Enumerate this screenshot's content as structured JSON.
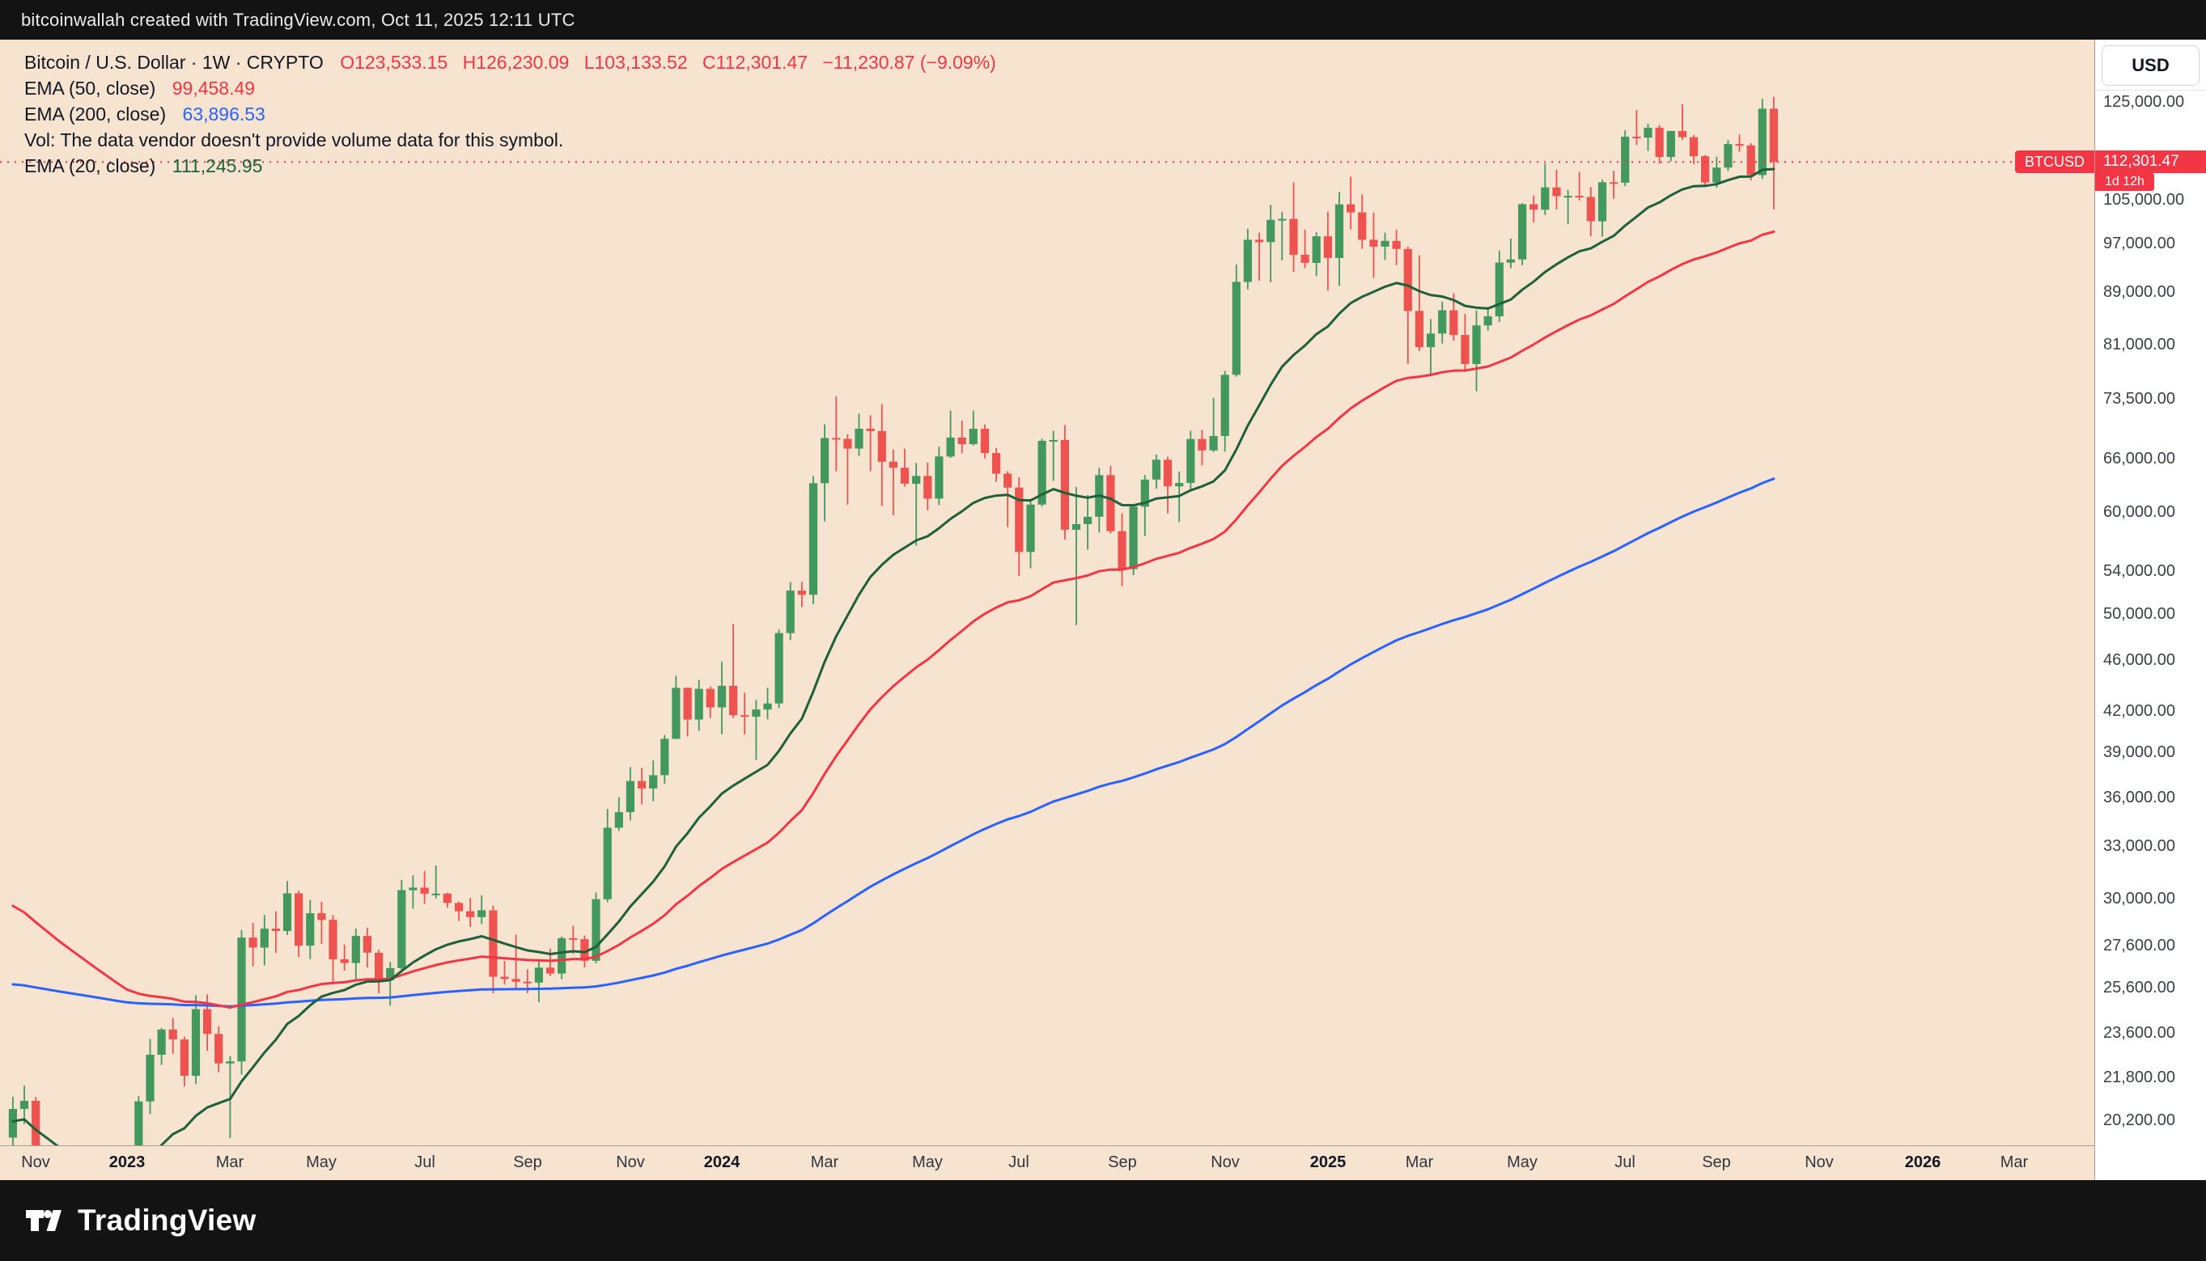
{
  "top_bar": {
    "attribution": "bitcoinwallah created with TradingView.com, Oct 11, 2025 12:11 UTC"
  },
  "legend": {
    "symbol": "Bitcoin / U.S. Dollar · 1W · CRYPTO",
    "ohlc": {
      "open": "O123,533.15",
      "high": "H126,230.09",
      "low": "L103,133.52",
      "close": "C112,301.47",
      "change": "−11,230.87 (−9.09%)"
    },
    "ema50": {
      "label": "EMA (50, close)",
      "value": "99,458.49"
    },
    "ema200": {
      "label": "EMA (200, close)",
      "value": "63,896.53"
    },
    "vol_note": "Vol: The data vendor doesn't provide volume data for this symbol.",
    "ema20": {
      "label": "EMA (20, close)",
      "value": "111,245.95"
    }
  },
  "price_axis": {
    "currency_button": "USD",
    "price_badge": "112,301.47",
    "countdown_badge": "1d 12h",
    "symbol_badge": "BTCUSD"
  },
  "footer": {
    "brand": "TradingView"
  },
  "chart_data": {
    "type": "candlestick",
    "title": "Bitcoin / U.S. Dollar, 1W, CRYPTO",
    "symbol": "BTCUSD",
    "interval": "1W",
    "scale": "log",
    "legend_position": "top-left",
    "grid": false,
    "view": {
      "price_top": 139800,
      "price_bottom": 19300,
      "total_weeks": 183
    },
    "last": {
      "open": 123533.15,
      "high": 126230.09,
      "low": 103133.52,
      "close": 112301.47,
      "change": "−11,230.87",
      "change_pct": "−9.09%"
    },
    "y_axis": {
      "side": "right",
      "ticks": [
        {
          "label": "125,000.00",
          "value": 125000
        },
        {
          "label": "105,000.00",
          "value": 105000
        },
        {
          "label": "97,000.00",
          "value": 97000
        },
        {
          "label": "89,000.00",
          "value": 89000
        },
        {
          "label": "81,000.00",
          "value": 81000
        },
        {
          "label": "73,500.00",
          "value": 73500
        },
        {
          "label": "66,000.00",
          "value": 66000
        },
        {
          "label": "60,000.00",
          "value": 60000
        },
        {
          "label": "54,000.00",
          "value": 54000
        },
        {
          "label": "50,000.00",
          "value": 50000
        },
        {
          "label": "46,000.00",
          "value": 46000
        },
        {
          "label": "42,000.00",
          "value": 42000
        },
        {
          "label": "39,000.00",
          "value": 39000
        },
        {
          "label": "36,000.00",
          "value": 36000
        },
        {
          "label": "33,000.00",
          "value": 33000
        },
        {
          "label": "30,000.00",
          "value": 30000
        },
        {
          "label": "27,600.00",
          "value": 27600
        },
        {
          "label": "25,600.00",
          "value": 25600
        },
        {
          "label": "23,600.00",
          "value": 23600
        },
        {
          "label": "21,800.00",
          "value": 21800
        },
        {
          "label": "20,200.00",
          "value": 20200
        }
      ]
    },
    "x_axis": {
      "ticks": [
        {
          "label": "Nov",
          "index": 2
        },
        {
          "label": "2023",
          "index": 10,
          "bold": true
        },
        {
          "label": "Mar",
          "index": 19
        },
        {
          "label": "May",
          "index": 27
        },
        {
          "label": "Jul",
          "index": 36
        },
        {
          "label": "Sep",
          "index": 45
        },
        {
          "label": "Nov",
          "index": 54
        },
        {
          "label": "2024",
          "index": 62,
          "bold": true
        },
        {
          "label": "Mar",
          "index": 71
        },
        {
          "label": "May",
          "index": 80
        },
        {
          "label": "Jul",
          "index": 88
        },
        {
          "label": "Sep",
          "index": 97
        },
        {
          "label": "Nov",
          "index": 106
        },
        {
          "label": "2025",
          "index": 115,
          "bold": true
        },
        {
          "label": "Mar",
          "index": 123
        },
        {
          "label": "May",
          "index": 132
        },
        {
          "label": "Jul",
          "index": 141
        },
        {
          "label": "Sep",
          "index": 149
        },
        {
          "label": "Nov",
          "index": 158
        },
        {
          "label": "2026",
          "index": 167,
          "bold": true
        },
        {
          "label": "Mar",
          "index": 175
        }
      ]
    },
    "indicators": [
      {
        "name": "EMA (20, close)",
        "period": 20,
        "seed": 20100,
        "color": "#1d603a",
        "last_value": 111245.95
      },
      {
        "name": "EMA (50, close)",
        "period": 50,
        "seed": 30000,
        "color": "#f23645",
        "last_value": 99458.49
      },
      {
        "name": "EMA (200, close)",
        "period": 200,
        "seed": 25800,
        "color": "#2962ff",
        "last_value": 63896.53
      }
    ],
    "colors": {
      "up": "#43995d",
      "down": "#ef5350",
      "background": "#f6e3d0",
      "price_line": "#f23645"
    },
    "candles": [
      [
        19570,
        21050,
        19150,
        20600
      ],
      [
        20600,
        21480,
        20050,
        20900
      ],
      [
        20900,
        21050,
        15480,
        16300
      ],
      [
        16300,
        17150,
        15750,
        16700
      ],
      [
        16700,
        16770,
        15500,
        16450
      ],
      [
        16450,
        17400,
        16000,
        17100
      ],
      [
        17100,
        17360,
        16750,
        17150
      ],
      [
        17150,
        18390,
        16530,
        16750
      ],
      [
        16750,
        16960,
        16350,
        16850
      ],
      [
        16850,
        16980,
        16330,
        16550
      ],
      [
        16550,
        17050,
        16490,
        16950
      ],
      [
        16950,
        21080,
        16910,
        20880
      ],
      [
        20880,
        23350,
        20410,
        22700
      ],
      [
        22700,
        23810,
        22290,
        23750
      ],
      [
        23750,
        24250,
        22740,
        23330
      ],
      [
        23330,
        23450,
        21440,
        21860
      ],
      [
        21860,
        25250,
        21540,
        24630
      ],
      [
        24630,
        25290,
        22860,
        23560
      ],
      [
        23560,
        23890,
        21990,
        22350
      ],
      [
        22350,
        22650,
        19550,
        22430
      ],
      [
        22430,
        28390,
        21910,
        28000
      ],
      [
        28000,
        28750,
        26590,
        27500
      ],
      [
        27500,
        29150,
        26640,
        28450
      ],
      [
        28450,
        29350,
        27240,
        28330
      ],
      [
        28330,
        30980,
        28140,
        30310
      ],
      [
        30310,
        30450,
        27040,
        27600
      ],
      [
        27600,
        29950,
        26940,
        29250
      ],
      [
        29250,
        29850,
        27690,
        28900
      ],
      [
        28900,
        29150,
        25840,
        26930
      ],
      [
        26930,
        27650,
        26390,
        26750
      ],
      [
        26750,
        28450,
        25890,
        28080
      ],
      [
        28080,
        28500,
        26540,
        27250
      ],
      [
        27250,
        27400,
        25340,
        25940
      ],
      [
        25940,
        26800,
        24790,
        26510
      ],
      [
        26510,
        31050,
        26290,
        30480
      ],
      [
        30480,
        31300,
        29490,
        30620
      ],
      [
        30620,
        31550,
        29740,
        30290
      ],
      [
        30290,
        31850,
        30040,
        30290
      ],
      [
        30290,
        30350,
        29540,
        29790
      ],
      [
        29790,
        29860,
        28840,
        29350
      ],
      [
        29350,
        30050,
        28540,
        29045
      ],
      [
        29045,
        30200,
        28690,
        29400
      ],
      [
        29400,
        29650,
        25340,
        26100
      ],
      [
        26100,
        26850,
        25740,
        26000
      ],
      [
        26000,
        28150,
        25540,
        25870
      ],
      [
        25870,
        26450,
        25340,
        25830
      ],
      [
        25830,
        26900,
        24940,
        26530
      ],
      [
        26530,
        27450,
        26140,
        26250
      ],
      [
        26250,
        28050,
        25990,
        27970
      ],
      [
        27970,
        28600,
        27190,
        27920
      ],
      [
        27920,
        28100,
        26540,
        26860
      ],
      [
        26860,
        30350,
        26740,
        29990
      ],
      [
        29990,
        35250,
        29840,
        34090
      ],
      [
        34090,
        36000,
        33890,
        35050
      ],
      [
        35050,
        38000,
        34540,
        37060
      ],
      [
        37060,
        37950,
        35540,
        36570
      ],
      [
        36570,
        38450,
        35740,
        37450
      ],
      [
        37450,
        40250,
        36890,
        39970
      ],
      [
        39970,
        44750,
        39940,
        43790
      ],
      [
        43790,
        43800,
        40140,
        41370
      ],
      [
        41370,
        44400,
        40540,
        43710
      ],
      [
        43710,
        43900,
        41490,
        42280
      ],
      [
        42280,
        45900,
        40290,
        43950
      ],
      [
        43950,
        49100,
        41490,
        41700
      ],
      [
        41700,
        43400,
        40270,
        41580
      ],
      [
        41580,
        42850,
        38490,
        42120
      ],
      [
        42120,
        43800,
        41390,
        42580
      ],
      [
        42580,
        48600,
        42240,
        48300
      ],
      [
        48300,
        52900,
        47690,
        52120
      ],
      [
        52120,
        52950,
        50590,
        51730
      ],
      [
        51730,
        64000,
        50890,
        63170
      ],
      [
        63170,
        70200,
        59000,
        68500
      ],
      [
        68500,
        73800,
        64540,
        68390
      ],
      [
        68390,
        68950,
        60790,
        67210
      ],
      [
        67210,
        71550,
        66340,
        69650
      ],
      [
        69650,
        71350,
        64540,
        69360
      ],
      [
        69360,
        72800,
        60660,
        65650
      ],
      [
        65650,
        67100,
        59640,
        64940
      ],
      [
        64940,
        67200,
        62790,
        63110
      ],
      [
        63110,
        65500,
        56490,
        64000
      ],
      [
        64000,
        65550,
        60190,
        61450
      ],
      [
        61450,
        67450,
        60740,
        66270
      ],
      [
        66270,
        71950,
        66090,
        68550
      ],
      [
        68550,
        70650,
        66640,
        67750
      ],
      [
        67750,
        71950,
        67590,
        69640
      ],
      [
        69640,
        70200,
        66040,
        66680
      ],
      [
        66680,
        67300,
        63340,
        64260
      ],
      [
        64260,
        64550,
        58390,
        62680
      ],
      [
        62680,
        63850,
        53490,
        55850
      ],
      [
        55850,
        61450,
        54240,
        60800
      ],
      [
        60800,
        68400,
        60590,
        68150
      ],
      [
        68150,
        69400,
        63440,
        68250
      ],
      [
        68250,
        70100,
        57090,
        58120
      ],
      [
        58120,
        62750,
        48990,
        58710
      ],
      [
        58710,
        61850,
        56090,
        59480
      ],
      [
        59480,
        64950,
        57840,
        64090
      ],
      [
        64090,
        65200,
        57740,
        57970
      ],
      [
        57970,
        59850,
        52540,
        54160
      ],
      [
        54160,
        60650,
        53590,
        60570
      ],
      [
        60570,
        64100,
        57490,
        63580
      ],
      [
        63580,
        66500,
        62540,
        65880
      ],
      [
        65880,
        66250,
        59840,
        62820
      ],
      [
        62820,
        64500,
        58940,
        63200
      ],
      [
        63200,
        69400,
        62440,
        68370
      ],
      [
        68370,
        69500,
        65240,
        67000
      ],
      [
        67000,
        73600,
        66790,
        68740
      ],
      [
        68740,
        77250,
        66840,
        76700
      ],
      [
        76700,
        93450,
        76440,
        90590
      ],
      [
        90590,
        99650,
        89390,
        97700
      ],
      [
        97700,
        98950,
        90790,
        97280
      ],
      [
        97280,
        104000,
        90540,
        101240
      ],
      [
        101240,
        102650,
        94140,
        101420
      ],
      [
        101420,
        108270,
        92240,
        95100
      ],
      [
        95100,
        99500,
        92840,
        93740
      ],
      [
        93740,
        99000,
        91540,
        98310
      ],
      [
        98310,
        102750,
        89190,
        94570
      ],
      [
        94570,
        106400,
        89940,
        104080
      ],
      [
        104080,
        109360,
        99540,
        102600
      ],
      [
        102600,
        105950,
        96140,
        97700
      ],
      [
        97700,
        102550,
        91240,
        96500
      ],
      [
        96500,
        98950,
        94240,
        97500
      ],
      [
        97500,
        99500,
        93340,
        96100
      ],
      [
        96100,
        96500,
        78240,
        86000
      ],
      [
        86000,
        95000,
        80040,
        80600
      ],
      [
        80600,
        84750,
        76590,
        82580
      ],
      [
        82580,
        87450,
        81140,
        86100
      ],
      [
        86100,
        88750,
        81540,
        82380
      ],
      [
        82380,
        85550,
        77090,
        78200
      ],
      [
        78200,
        86100,
        74490,
        83800
      ],
      [
        83800,
        86450,
        83040,
        85170
      ],
      [
        85170,
        95850,
        84340,
        93780
      ],
      [
        93780,
        97900,
        92840,
        94320
      ],
      [
        94320,
        104300,
        93340,
        104110
      ],
      [
        104110,
        105750,
        100740,
        103100
      ],
      [
        103100,
        111980,
        102140,
        107300
      ],
      [
        107300,
        110750,
        103140,
        105640
      ],
      [
        105640,
        106800,
        100440,
        105690
      ],
      [
        105690,
        110300,
        104840,
        105470
      ],
      [
        105470,
        107350,
        98290,
        100980
      ],
      [
        100980,
        108800,
        98240,
        108300
      ],
      [
        108300,
        110550,
        105140,
        108200
      ],
      [
        108200,
        118850,
        107540,
        117500
      ],
      [
        117500,
        123230,
        115740,
        117300
      ],
      [
        117300,
        120250,
        114540,
        119400
      ],
      [
        119400,
        119950,
        111940,
        113300
      ],
      [
        113300,
        118750,
        112390,
        118700
      ],
      [
        118700,
        124500,
        116840,
        117400
      ],
      [
        117400,
        117850,
        111840,
        113460
      ],
      [
        113460,
        113750,
        107340,
        108240
      ],
      [
        108240,
        113350,
        107240,
        111170
      ],
      [
        111170,
        116750,
        110490,
        115950
      ],
      [
        115950,
        117950,
        114340,
        115680
      ],
      [
        115680,
        116150,
        108640,
        109680
      ],
      [
        109680,
        125750,
        108940,
        123533.15
      ],
      [
        123533.15,
        126230.09,
        103133.52,
        112301.47
      ]
    ]
  }
}
